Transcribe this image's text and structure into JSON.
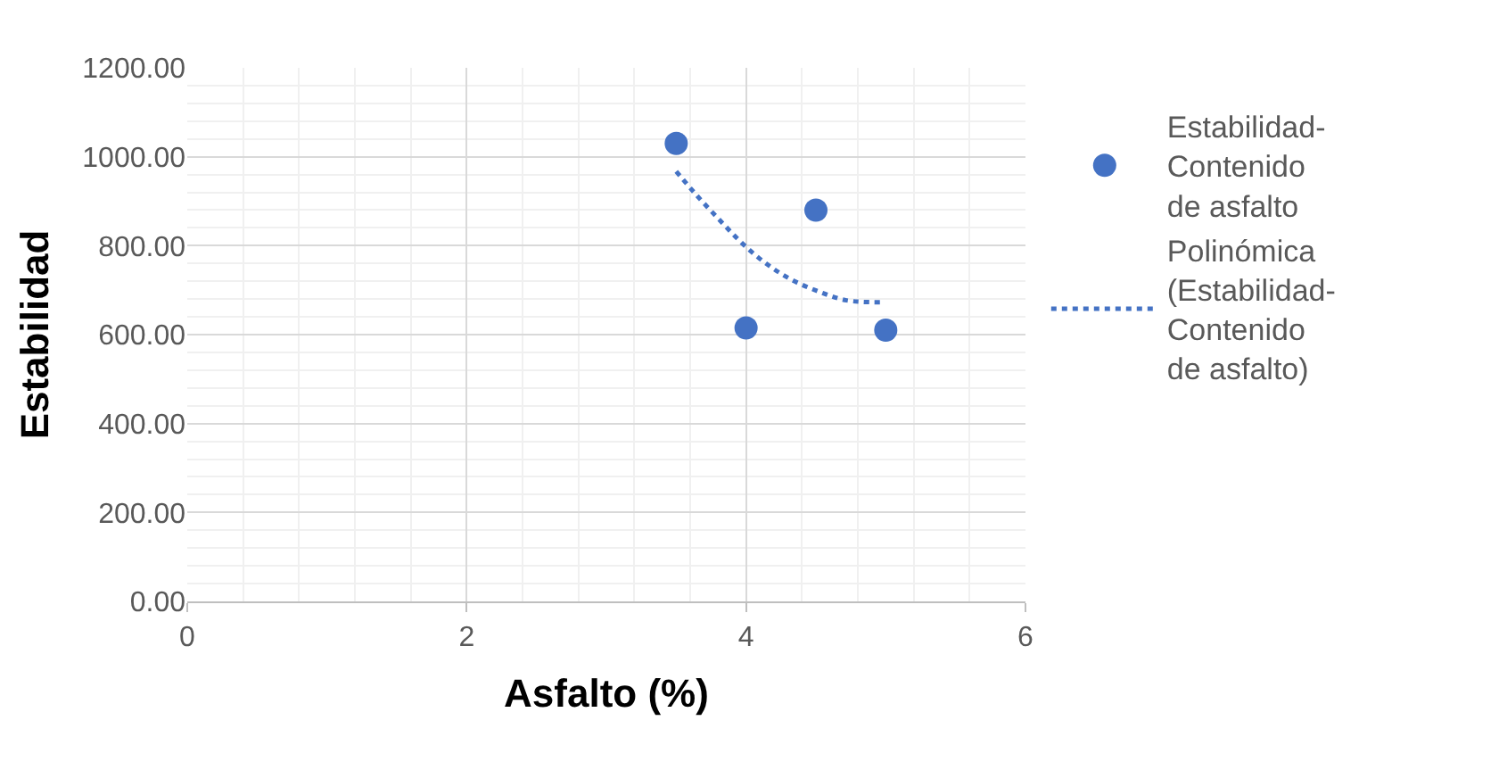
{
  "chart_data": {
    "type": "scatter",
    "xlabel": "Asfalto (%)",
    "ylabel": "Estabilidad",
    "xlim": [
      0,
      6
    ],
    "xticks": [
      0,
      2,
      4,
      6
    ],
    "ylim": [
      0,
      1200
    ],
    "yticks": [
      {
        "value": 0,
        "label": "0.00"
      },
      {
        "value": 200,
        "label": "200.00"
      },
      {
        "value": 400,
        "label": "400.00"
      },
      {
        "value": 600,
        "label": "600.00"
      },
      {
        "value": 800,
        "label": "800.00"
      },
      {
        "value": 1000,
        "label": "1000.00"
      },
      {
        "value": 1200,
        "label": "1200.00"
      }
    ],
    "grid": true,
    "legend": "right",
    "series": [
      {
        "name": "Estabilidad-Contenido de asfalto",
        "marker": "circle",
        "color": "#4472c4",
        "x": [
          3.5,
          4,
          4.5,
          5
        ],
        "values": [
          1030,
          615,
          880,
          610
        ]
      },
      {
        "name": "Polinómica (Estabilidad-Contenido de asfalto)",
        "type": "line",
        "marker": "none",
        "line_style": "dotted",
        "color": "#4472c4",
        "x": [
          3.5,
          3.65,
          3.81,
          3.97,
          4.13,
          4.31,
          4.51,
          4.72,
          4.97
        ],
        "values": [
          967,
          912,
          858,
          806,
          763,
          726,
          698,
          677,
          673
        ]
      }
    ]
  }
}
